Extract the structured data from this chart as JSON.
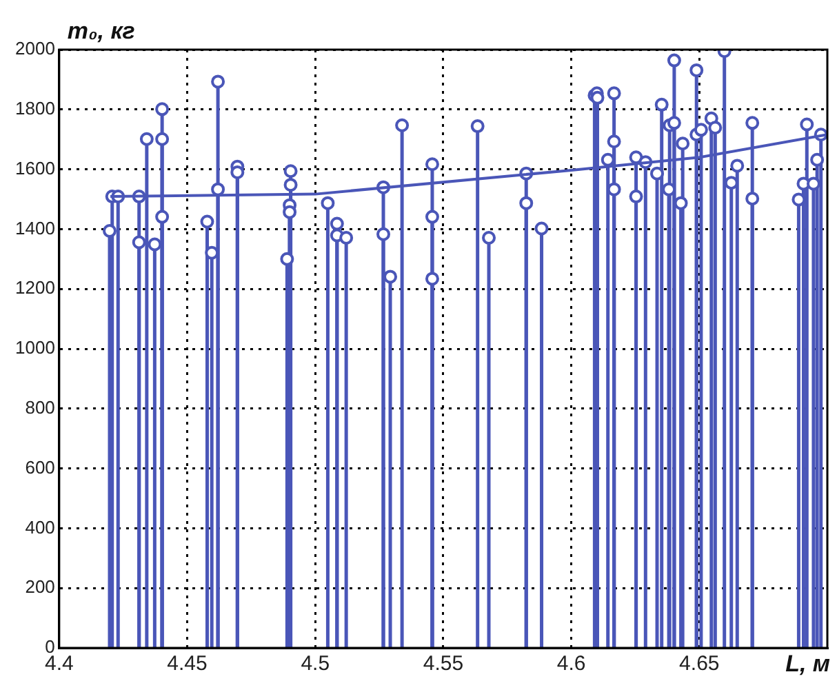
{
  "chart_data": {
    "type": "lollipop",
    "xlabel": "L, м",
    "ylabel": "m₀, кг",
    "xlim": [
      4.4,
      4.7
    ],
    "xticks": [
      4.4,
      4.45,
      4.5,
      4.55,
      4.6,
      4.65
    ],
    "ylim": [
      0,
      2000
    ],
    "yticks": [
      0,
      200,
      400,
      600,
      800,
      1000,
      1200,
      1400,
      1600,
      1800,
      2000
    ],
    "grid": true,
    "legend": false,
    "series": [
      {
        "marker": "circle",
        "color": "#4a56b8",
        "x": [
          4.4197,
          4.4207,
          4.423,
          4.4312,
          4.4312,
          4.4342,
          4.4373,
          4.4402,
          4.4402,
          4.4402,
          4.4578,
          4.4596,
          4.462,
          4.462,
          4.4696,
          4.4696,
          4.4904,
          4.4904,
          4.49,
          4.49,
          4.489,
          4.5049,
          4.5085,
          4.5085,
          4.5121,
          4.5266,
          4.5266,
          4.5293,
          4.5339,
          4.5457,
          4.5457,
          4.5457,
          4.5634,
          4.5678,
          4.5824,
          4.5824,
          4.5884,
          4.6091,
          4.61,
          4.6102,
          4.6167,
          4.6167,
          4.6143,
          4.6167,
          4.6253,
          4.6253,
          4.629,
          4.6335,
          4.6353,
          4.6381,
          4.6384,
          4.6402,
          4.6402,
          4.6435,
          4.6428,
          4.6489,
          4.6489,
          4.6507,
          4.6547,
          4.6562,
          4.6598,
          4.6648,
          4.6625,
          4.6707,
          4.6707,
          4.692,
          4.6888,
          4.6907,
          4.6946,
          4.696,
          4.6975
        ],
        "values": [
          1394,
          1509,
          1509,
          1509,
          1356,
          1701,
          1349,
          1801,
          1701,
          1441,
          1425,
          1321,
          1893,
          1533,
          1609,
          1590,
          1594,
          1548,
          1480,
          1457,
          1300,
          1487,
          1418,
          1379,
          1371,
          1540,
          1383,
          1241,
          1747,
          1617,
          1441,
          1234,
          1744,
          1371,
          1586,
          1487,
          1402,
          1847,
          1854,
          1839,
          1854,
          1693,
          1632,
          1533,
          1640,
          1509,
          1624,
          1586,
          1816,
          1533,
          1747,
          1964,
          1755,
          1686,
          1487,
          1931,
          1716,
          1732,
          1770,
          1739,
          1995,
          1612,
          1555,
          1755,
          1502,
          1750,
          1499,
          1552,
          1552,
          1632,
          1716
        ]
      },
      {
        "type": "line",
        "color": "#4a56b8",
        "x": [
          4.42,
          4.5,
          4.6,
          4.65,
          4.7
        ],
        "values": [
          1509,
          1517,
          1597,
          1640,
          1716
        ]
      }
    ]
  }
}
